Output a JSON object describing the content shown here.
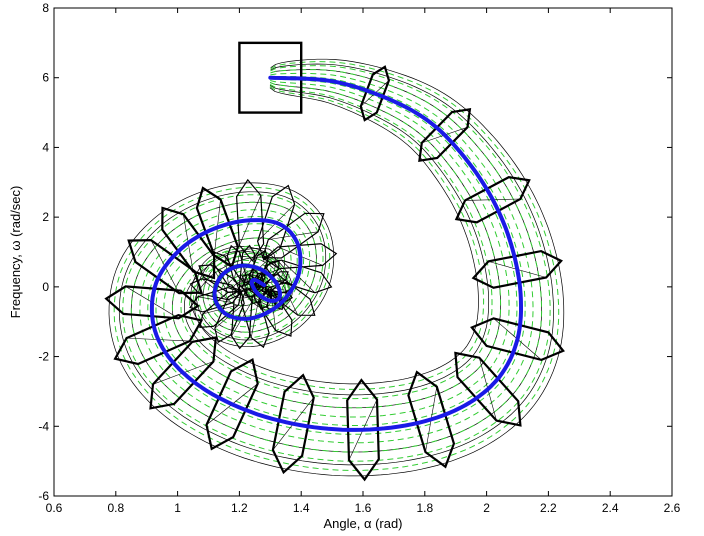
{
  "chart_data": {
    "type": "line",
    "xlabel": "Angle, α (rad)",
    "ylabel": "Frequency, ω (rad/sec)",
    "xlim": [
      0.6,
      2.6
    ],
    "ylim": [
      -6,
      8
    ],
    "xticks": [
      "0.6",
      "0.8",
      "1",
      "1.2",
      "1.4",
      "1.6",
      "1.8",
      "2",
      "2.2",
      "2.4",
      "2.6"
    ],
    "yticks": [
      "-6",
      "-4",
      "-2",
      "0",
      "2",
      "4",
      "6",
      "8"
    ],
    "grid": false,
    "colors": {
      "nominal": "#1a1ae6",
      "samples": "#33cc33",
      "reach": "#000000"
    },
    "nominal_trajectory": {
      "x": [
        1.3,
        1.5,
        1.68,
        1.82,
        1.93,
        2.02,
        2.08,
        2.11,
        2.1,
        2.04,
        1.93,
        1.78,
        1.6,
        1.42,
        1.24,
        1.08,
        0.97,
        0.92,
        0.93,
        1.0,
        1.1,
        1.22,
        1.33,
        1.39,
        1.39,
        1.33,
        1.24,
        1.16,
        1.12,
        1.14,
        1.2,
        1.27,
        1.32,
        1.33,
        1.3,
        1.26,
        1.24,
        1.25,
        1.28
      ],
      "y": [
        6.0,
        5.9,
        5.4,
        4.7,
        3.7,
        2.5,
        1.2,
        -0.2,
        -1.5,
        -2.6,
        -3.4,
        -3.9,
        -4.1,
        -4.0,
        -3.6,
        -2.9,
        -2.0,
        -1.0,
        0.1,
        1.0,
        1.6,
        1.9,
        1.8,
        1.2,
        0.3,
        -0.5,
        -0.9,
        -0.8,
        -0.3,
        0.3,
        0.6,
        0.5,
        0.1,
        -0.3,
        -0.4,
        -0.2,
        0.1,
        0.2,
        0.05
      ]
    },
    "initial_box": {
      "x": [
        1.2,
        1.4
      ],
      "y": [
        5,
        7
      ]
    }
  }
}
